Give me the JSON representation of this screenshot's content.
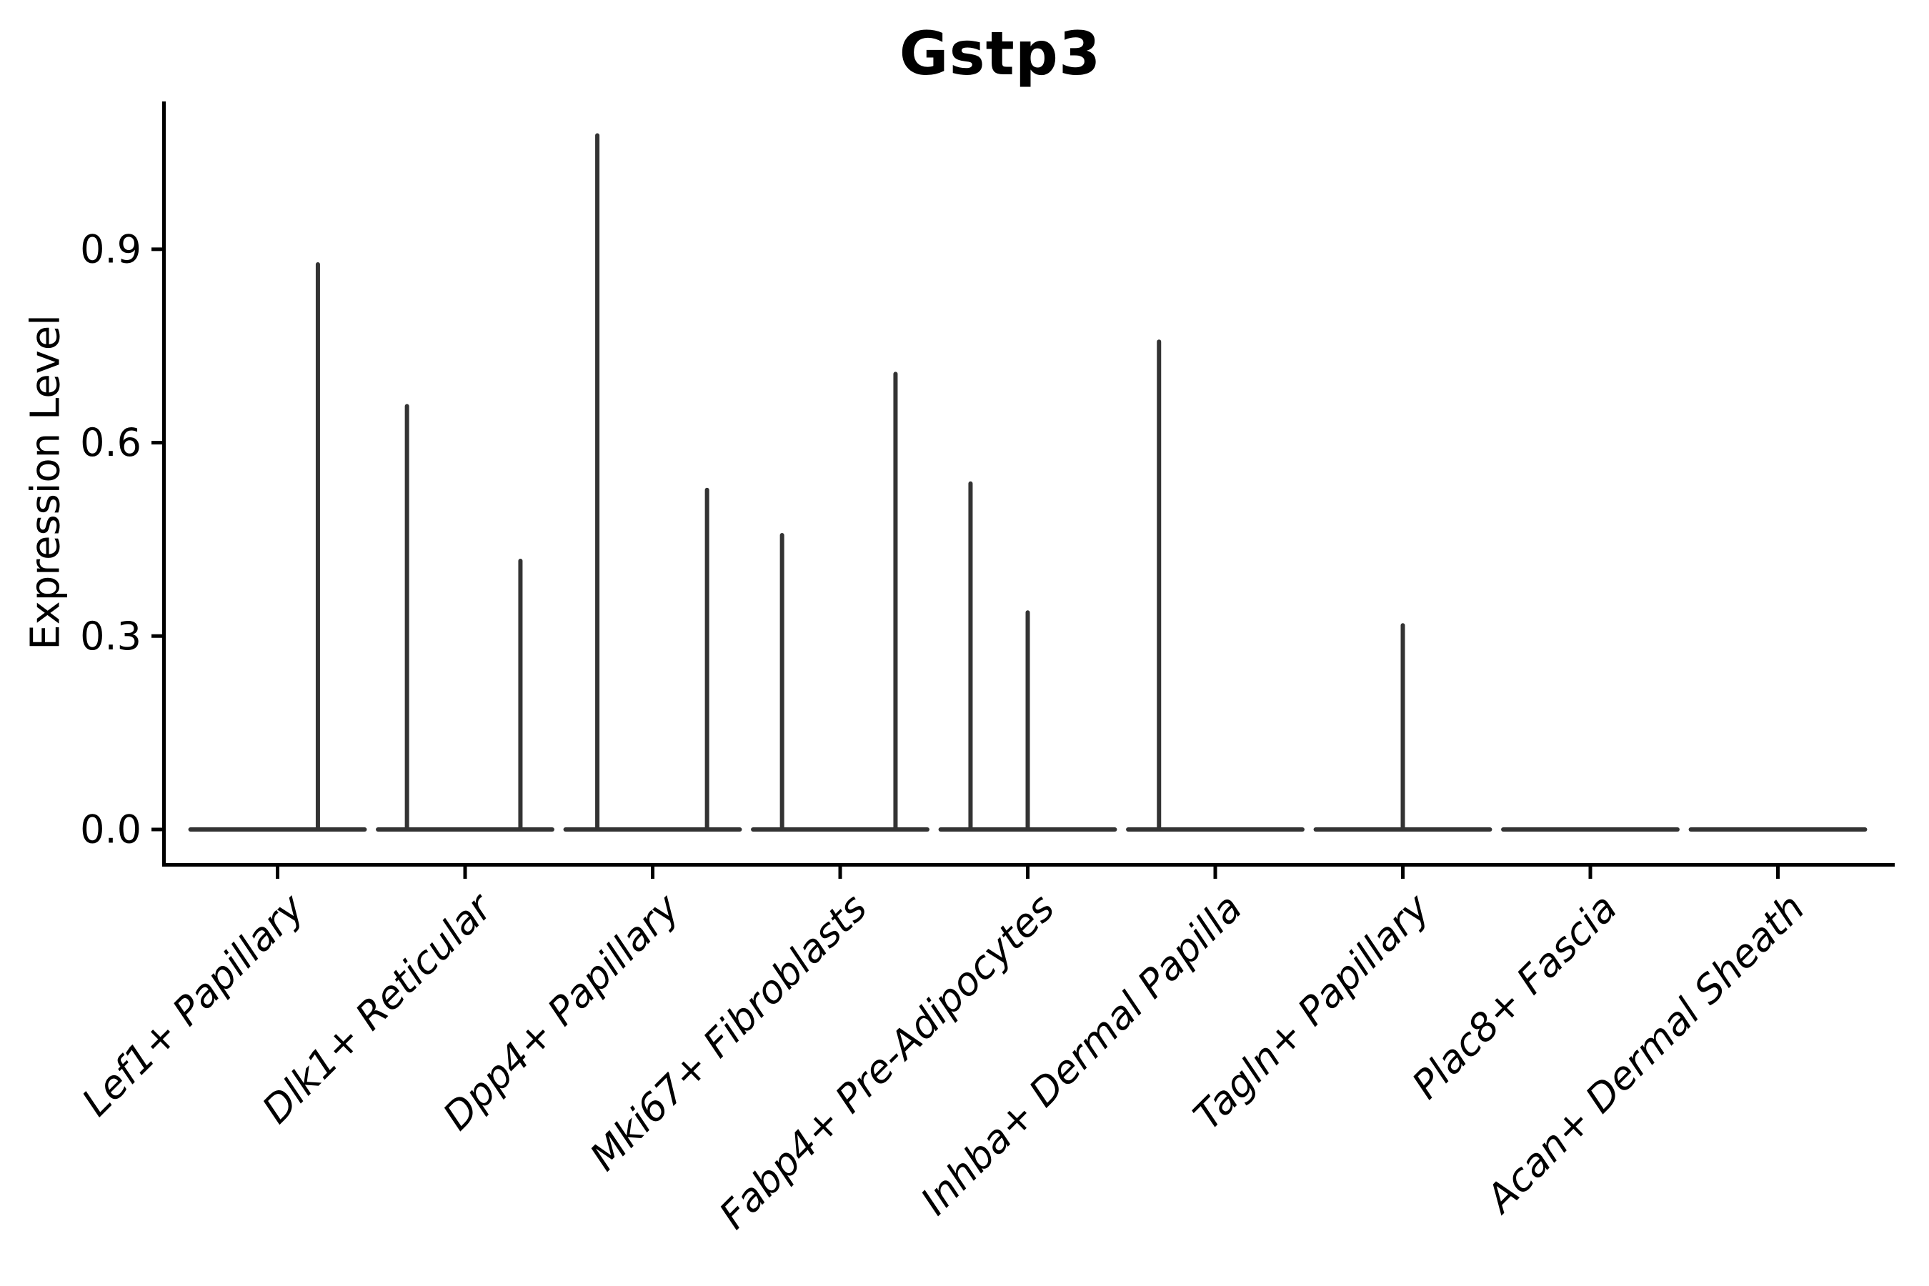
{
  "figure": {
    "title": "Gstp3",
    "background": "#ffffff",
    "axis_color": "#000000",
    "violin_color": "#333333"
  },
  "y_axis": {
    "label": "Expression Level",
    "tick_labels": [
      "0.0",
      "0.3",
      "0.6",
      "0.9"
    ],
    "tick_values": [
      0.0,
      0.3,
      0.6,
      0.9
    ]
  },
  "x_axis": {
    "categories": [
      "Lef1+ Papillary",
      "Dlk1+ Reticular",
      "Dpp4+ Papillary",
      "Mki67+ Fibroblasts",
      "Fabp4+ Pre-Adipocytes",
      "Inhba+ Dermal Papilla",
      "Tagln+ Papillary",
      "Plac8+ Fascia",
      "Acan+ Dermal Sheath"
    ]
  },
  "chart_data": {
    "type": "violin",
    "title": "Gstp3",
    "xlabel": "",
    "ylabel": "Expression Level",
    "ylim": [
      0,
      1.13
    ],
    "yticks": [
      0.0,
      0.3,
      0.6,
      0.9
    ],
    "grid": false,
    "legend": null,
    "style_note": "Each category is a violin collapsed to a flat bar at expression 0 with thin vertical density spikes at the listed maxima; offset_frac is the horizontal offset of each spike from the category center in category-width units.",
    "categories": [
      "Lef1+ Papillary",
      "Dlk1+ Reticular",
      "Dpp4+ Papillary",
      "Mki67+ Fibroblasts",
      "Fabp4+ Pre-Adipocytes",
      "Inhba+ Dermal Papilla",
      "Tagln+ Papillary",
      "Plac8+ Fascia",
      "Acan+ Dermal Sheath"
    ],
    "violins": [
      {
        "category": "Lef1+ Papillary",
        "base_halfwidth_frac": 0.476,
        "spikes": [
          {
            "offset_frac": 0.215,
            "value": 0.88
          }
        ]
      },
      {
        "category": "Dlk1+ Reticular",
        "base_halfwidth_frac": 0.476,
        "spikes": [
          {
            "offset_frac": -0.31,
            "value": 0.66
          },
          {
            "offset_frac": 0.295,
            "value": 0.42
          }
        ]
      },
      {
        "category": "Dpp4+ Papillary",
        "base_halfwidth_frac": 0.476,
        "spikes": [
          {
            "offset_frac": -0.295,
            "value": 1.08
          },
          {
            "offset_frac": 0.29,
            "value": 0.53
          }
        ]
      },
      {
        "category": "Mki67+ Fibroblasts",
        "base_halfwidth_frac": 0.476,
        "spikes": [
          {
            "offset_frac": -0.31,
            "value": 0.46
          },
          {
            "offset_frac": 0.295,
            "value": 0.71
          }
        ]
      },
      {
        "category": "Fabp4+ Pre-Adipocytes",
        "base_halfwidth_frac": 0.476,
        "spikes": [
          {
            "offset_frac": -0.305,
            "value": 0.54
          },
          {
            "offset_frac": 0.0,
            "value": 0.34
          }
        ]
      },
      {
        "category": "Inhba+ Dermal Papilla",
        "base_halfwidth_frac": 0.476,
        "spikes": [
          {
            "offset_frac": -0.3,
            "value": 0.76
          }
        ]
      },
      {
        "category": "Tagln+ Papillary",
        "base_halfwidth_frac": 0.476,
        "spikes": [
          {
            "offset_frac": 0.0,
            "value": 0.32
          }
        ]
      },
      {
        "category": "Plac8+ Fascia",
        "base_halfwidth_frac": 0.476,
        "spikes": []
      },
      {
        "category": "Acan+ Dermal Sheath",
        "base_halfwidth_frac": 0.476,
        "spikes": []
      }
    ]
  }
}
